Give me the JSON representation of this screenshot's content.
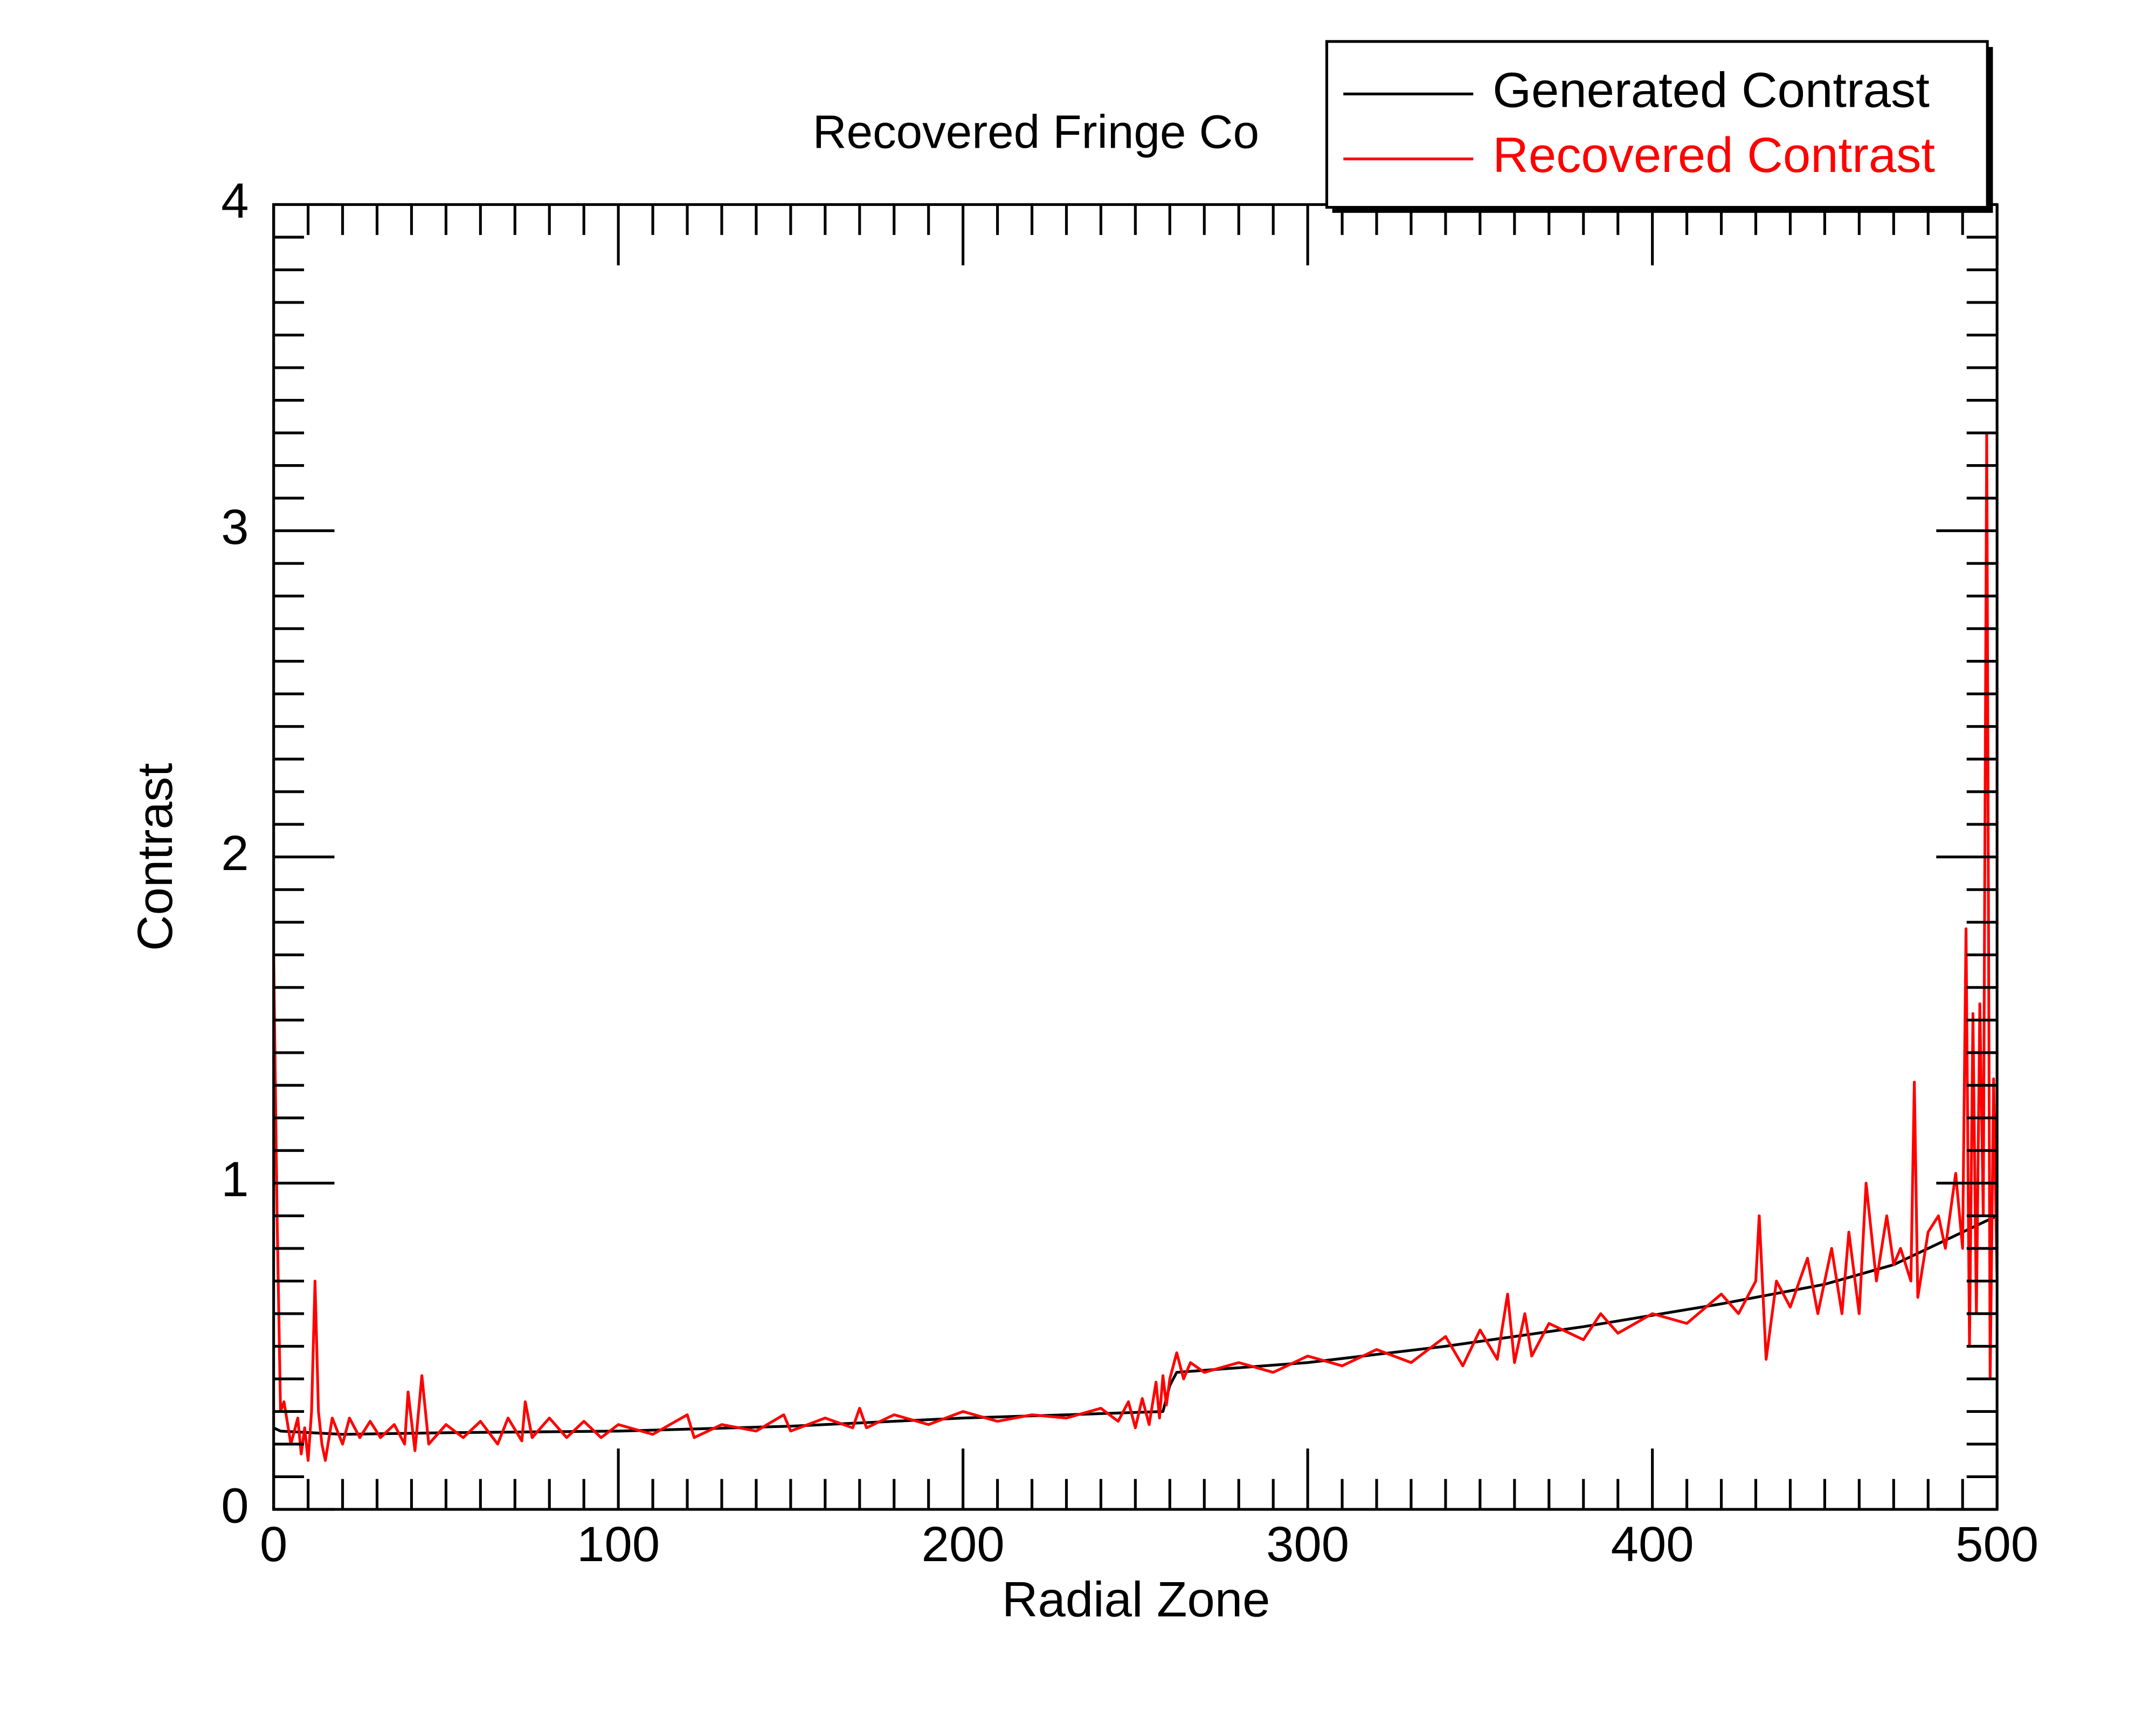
{
  "chart_data": {
    "type": "line",
    "title": "Recovered Fringe Co",
    "x_label": "Radial Zone",
    "y_label": "Contrast",
    "xlim": [
      0,
      500
    ],
    "ylim": [
      0,
      4
    ],
    "xticks": [
      0,
      100,
      200,
      300,
      400,
      500
    ],
    "yticks": [
      0,
      1,
      2,
      3,
      4
    ],
    "series": [
      {
        "name": "Generated Contrast",
        "color": "#000000",
        "x": [
          0,
          2,
          20,
          50,
          100,
          150,
          200,
          230,
          258,
          260,
          262,
          300,
          340,
          380,
          420,
          450,
          470,
          480,
          490,
          500
        ],
        "values": [
          0.25,
          0.24,
          0.23,
          0.235,
          0.24,
          0.255,
          0.28,
          0.29,
          0.3,
          0.38,
          0.42,
          0.45,
          0.5,
          0.56,
          0.63,
          0.69,
          0.75,
          0.8,
          0.85,
          0.9
        ]
      },
      {
        "name": "Recovered Contrast",
        "color": "#ff0000",
        "x": [
          0,
          1,
          2,
          3,
          5,
          7,
          8,
          9,
          10,
          11,
          12,
          13,
          14,
          15,
          17,
          20,
          22,
          25,
          28,
          31,
          35,
          38,
          39,
          41,
          43,
          45,
          50,
          55,
          60,
          65,
          68,
          72,
          73,
          75,
          80,
          85,
          90,
          95,
          100,
          110,
          120,
          122,
          130,
          140,
          148,
          150,
          160,
          168,
          170,
          172,
          180,
          190,
          200,
          210,
          220,
          230,
          240,
          245,
          248,
          250,
          252,
          254,
          256,
          257,
          258,
          259,
          260,
          262,
          264,
          266,
          270,
          280,
          290,
          300,
          310,
          320,
          330,
          340,
          345,
          350,
          355,
          358,
          360,
          363,
          365,
          370,
          380,
          385,
          390,
          400,
          410,
          420,
          425,
          430,
          431,
          433,
          436,
          440,
          445,
          448,
          452,
          455,
          457,
          460,
          462,
          465,
          468,
          470,
          472,
          475,
          476,
          477,
          480,
          483,
          485,
          488,
          490,
          491,
          492,
          493,
          494,
          495,
          496,
          497,
          498,
          499,
          500
        ],
        "values": [
          1.7,
          0.9,
          0.3,
          0.33,
          0.2,
          0.28,
          0.17,
          0.25,
          0.15,
          0.3,
          0.7,
          0.3,
          0.2,
          0.15,
          0.28,
          0.2,
          0.28,
          0.22,
          0.27,
          0.22,
          0.26,
          0.2,
          0.36,
          0.18,
          0.41,
          0.2,
          0.26,
          0.22,
          0.27,
          0.2,
          0.28,
          0.21,
          0.33,
          0.22,
          0.28,
          0.22,
          0.27,
          0.22,
          0.26,
          0.23,
          0.29,
          0.22,
          0.26,
          0.24,
          0.29,
          0.24,
          0.28,
          0.25,
          0.31,
          0.25,
          0.29,
          0.26,
          0.3,
          0.27,
          0.29,
          0.28,
          0.31,
          0.27,
          0.33,
          0.25,
          0.34,
          0.26,
          0.39,
          0.28,
          0.41,
          0.32,
          0.4,
          0.48,
          0.4,
          0.45,
          0.42,
          0.45,
          0.42,
          0.47,
          0.44,
          0.49,
          0.45,
          0.53,
          0.44,
          0.55,
          0.46,
          0.66,
          0.45,
          0.6,
          0.47,
          0.57,
          0.52,
          0.6,
          0.54,
          0.6,
          0.57,
          0.66,
          0.6,
          0.7,
          0.9,
          0.46,
          0.7,
          0.62,
          0.77,
          0.6,
          0.8,
          0.6,
          0.85,
          0.6,
          1.0,
          0.7,
          0.9,
          0.75,
          0.8,
          0.7,
          1.31,
          0.65,
          0.85,
          0.9,
          0.8,
          1.03,
          0.8,
          1.78,
          0.5,
          1.52,
          0.6,
          1.55,
          0.9,
          3.3,
          0.4,
          1.32,
          0.7
        ]
      }
    ]
  }
}
